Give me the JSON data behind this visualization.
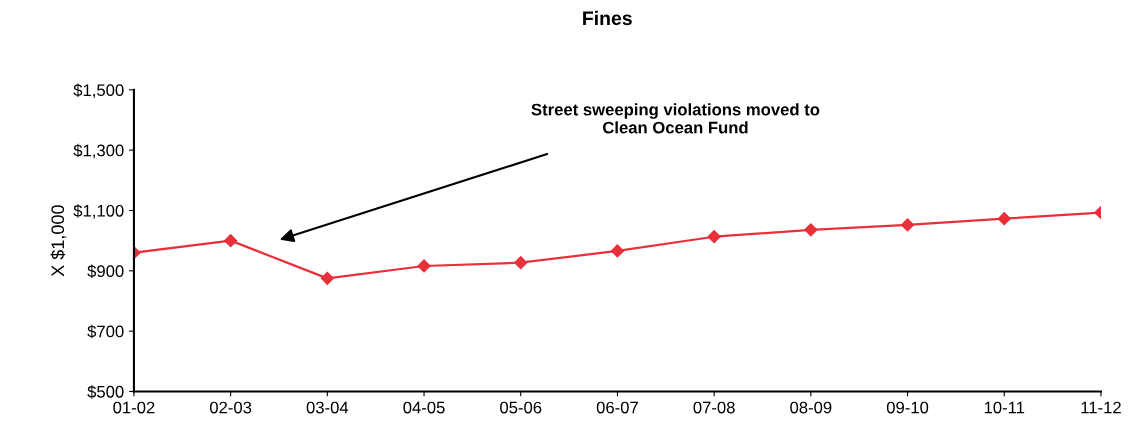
{
  "chart_data": {
    "type": "line",
    "title": "Fines",
    "ylabel": "X $1,000",
    "categories": [
      "01-02",
      "02-03",
      "03-04",
      "04-05",
      "05-06",
      "06-07",
      "07-08",
      "08-09",
      "09-10",
      "10-11",
      "11-12"
    ],
    "series": [
      {
        "color": "#e8303a",
        "values": [
          960,
          1000,
          875,
          916,
          927,
          966,
          1013,
          1036,
          1052,
          1073,
          1093
        ]
      }
    ],
    "ylim": [
      500,
      1500
    ],
    "yticks": [
      {
        "value": 500,
        "label": "$500"
      },
      {
        "value": 700,
        "label": "$700"
      },
      {
        "value": 900,
        "label": "$900"
      },
      {
        "value": 1100,
        "label": "$1,100"
      },
      {
        "value": 1300,
        "label": "$1,300"
      },
      {
        "value": 1500,
        "label": "$1,500"
      }
    ],
    "marker": "diamond",
    "line_style": "solid",
    "grid": false,
    "annotations": [
      "Street sweeping violations moved to\nClean Ocean Fund"
    ]
  }
}
